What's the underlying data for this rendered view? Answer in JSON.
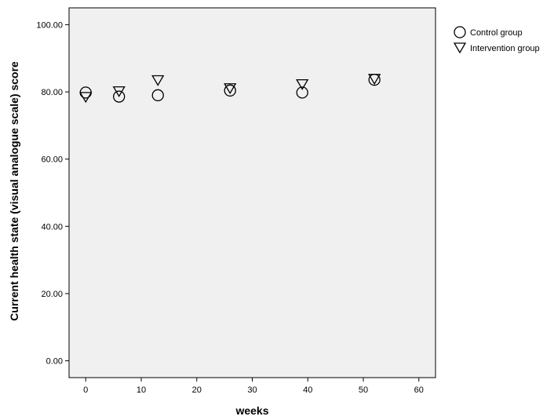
{
  "chart_data": {
    "type": "scatter",
    "xlabel": "weeks",
    "ylabel": "Current health state (visual analogue scale) score",
    "xlim": [
      -3,
      63
    ],
    "ylim": [
      -5,
      105
    ],
    "x_ticks": [
      0,
      10,
      20,
      30,
      40,
      50,
      60
    ],
    "y_ticks": [
      0,
      20,
      40,
      60,
      80,
      100
    ],
    "y_tick_labels": [
      "0.00",
      "20.00",
      "40.00",
      "60.00",
      "80.00",
      "100.00"
    ],
    "grid": false,
    "legend_position": "top-right-outside",
    "series": [
      {
        "name": "Control group",
        "marker": "circle",
        "color": "#000000",
        "points": [
          {
            "x": 0,
            "y": 79.8
          },
          {
            "x": 6,
            "y": 78.6
          },
          {
            "x": 13,
            "y": 79.0
          },
          {
            "x": 26,
            "y": 80.4
          },
          {
            "x": 39,
            "y": 79.8
          },
          {
            "x": 52,
            "y": 83.6
          }
        ]
      },
      {
        "name": "Intervention group",
        "marker": "triangle-down",
        "color": "#000000",
        "points": [
          {
            "x": 0,
            "y": 78.4
          },
          {
            "x": 6,
            "y": 80.1
          },
          {
            "x": 13,
            "y": 83.4
          },
          {
            "x": 26,
            "y": 81.0
          },
          {
            "x": 39,
            "y": 82.2
          },
          {
            "x": 52,
            "y": 83.8
          }
        ]
      }
    ],
    "colors": {
      "plot_background": "#f0f0f0",
      "axis": "#000000"
    }
  }
}
